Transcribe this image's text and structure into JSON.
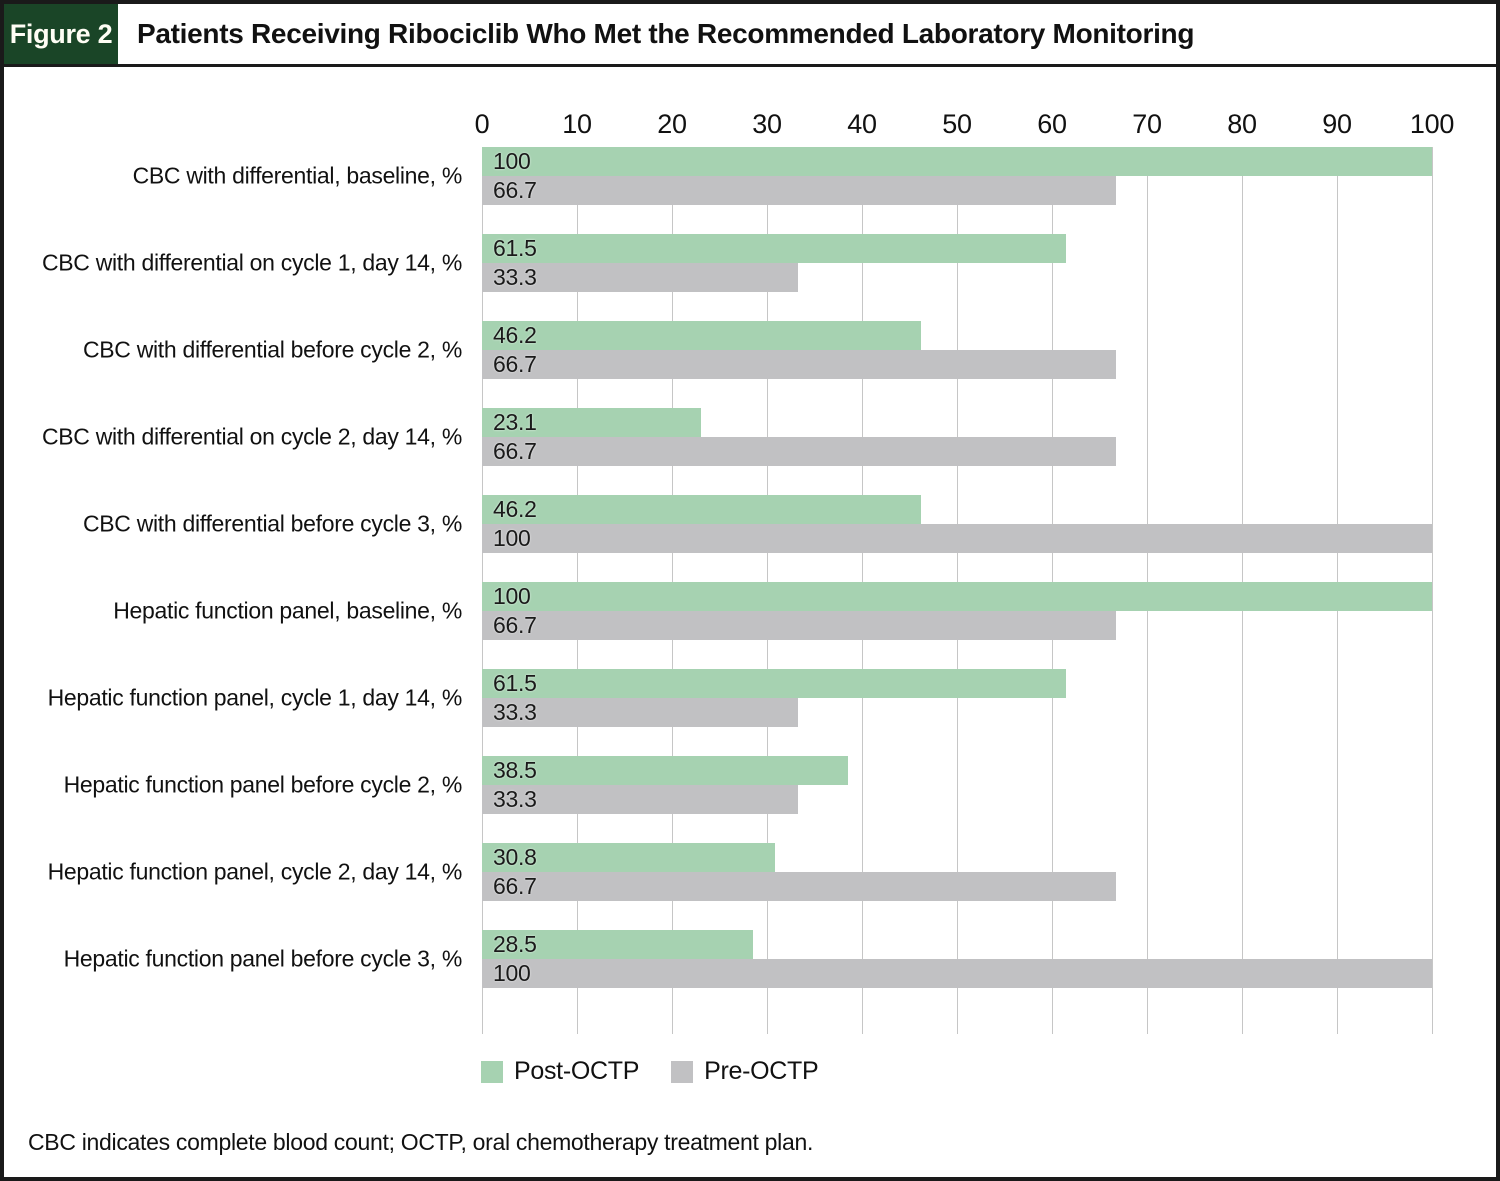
{
  "figure": {
    "label": "Figure 2",
    "title": "Patients Receiving Ribociclib Who Met the Recommended Laboratory Monitoring",
    "footnote": "CBC indicates complete blood count; OCTP, oral chemotherapy treatment plan."
  },
  "colors": {
    "post_octp": "#a6d2b1",
    "pre_octp": "#c1c1c3",
    "badge_green": "#1a4527",
    "gridline": "#c6c6c6",
    "text": "#1a1a1a"
  },
  "chart_data": {
    "type": "bar",
    "orientation": "horizontal",
    "title": "Patients Receiving Ribociclib Who Met the Recommended Laboratory Monitoring",
    "xlabel": "",
    "ylabel": "",
    "xlim": [
      0,
      100
    ],
    "xticks": [
      0,
      10,
      20,
      30,
      40,
      50,
      60,
      70,
      80,
      90,
      100
    ],
    "grid": true,
    "legend_position": "bottom",
    "categories": [
      "CBC with differential, baseline, %",
      "CBC with differential on cycle 1, day 14, %",
      "CBC with differential before cycle 2, %",
      "CBC with differential on cycle 2, day 14, %",
      "CBC with differential before cycle 3, %",
      "Hepatic function panel, baseline, %",
      "Hepatic function panel, cycle 1, day 14, %",
      "Hepatic function panel before cycle 2, %",
      "Hepatic function panel, cycle 2, day 14, %",
      "Hepatic function panel before cycle 3, %"
    ],
    "series": [
      {
        "name": "Post-OCTP",
        "color": "#a6d2b1",
        "values": [
          100,
          61.5,
          46.2,
          23.1,
          46.2,
          100,
          61.5,
          38.5,
          30.8,
          28.5
        ]
      },
      {
        "name": "Pre-OCTP",
        "color": "#c1c1c3",
        "values": [
          66.7,
          33.3,
          66.7,
          66.7,
          100,
          66.7,
          33.3,
          33.3,
          66.7,
          100
        ]
      }
    ]
  }
}
